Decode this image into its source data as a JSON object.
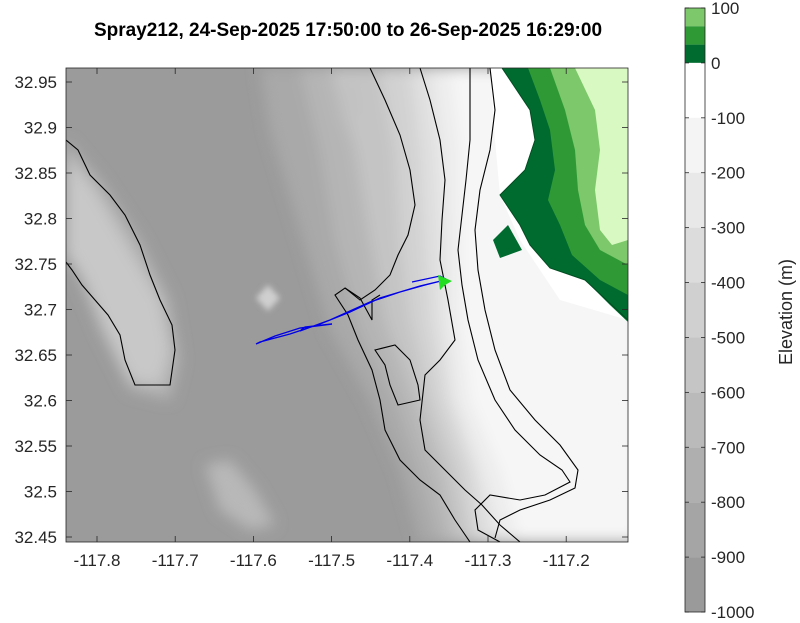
{
  "title": "Spray212, 24-Sep-2025 17:50:00 to 26-Sep-2025 16:29:00",
  "map": {
    "x_ticks": [
      "-117.8",
      "-117.7",
      "-117.6",
      "-117.5",
      "-117.4",
      "-117.3",
      "-117.2"
    ],
    "y_ticks": [
      "32.95",
      "32.9",
      "32.85",
      "32.8",
      "32.75",
      "32.7",
      "32.65",
      "32.6",
      "32.55",
      "32.5",
      "32.45"
    ],
    "colors": {
      "deep": "#9a9a9a",
      "land_dark": "#006b2e",
      "land_mid": "#2f9a35",
      "land_light": "#7cc86a",
      "land_top": "#d9f9c3",
      "track": "#0000e6",
      "end_marker": "#22dd22",
      "contour": "#000000"
    }
  },
  "colorbar": {
    "label": "Elevation (m)",
    "ticks": [
      "100",
      "0",
      "-100",
      "-200",
      "-300",
      "-400",
      "-500",
      "-600",
      "-700",
      "-800",
      "-900",
      "-1000"
    ],
    "colors": [
      "#7cc86a",
      "#2f9a35",
      "#006b2e",
      "#ffffff",
      "#f4f4f4",
      "#e8e8e8",
      "#dcdcdc",
      "#d0d0d0",
      "#c5c5c5",
      "#bababa",
      "#afafaf",
      "#a5a5a5",
      "#9a9a9a"
    ]
  }
}
